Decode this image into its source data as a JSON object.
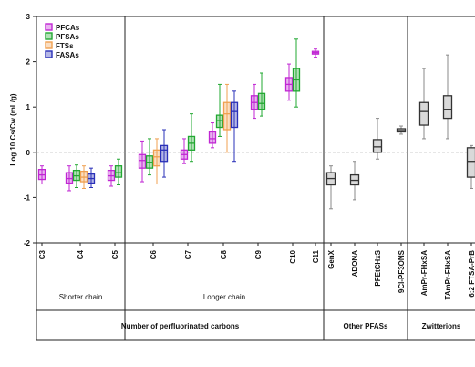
{
  "chart_data": {
    "type": "box",
    "ylabel": "Log 10 Cs/Cw (mL/g)",
    "ylim": [
      -2,
      3
    ],
    "yticks": [
      "-2",
      "-1",
      "0",
      "1",
      "2",
      "3"
    ],
    "reference_line": 0,
    "legend": {
      "placement": "top-left",
      "entries": [
        {
          "name": "PFCAs",
          "color": "#c026d3"
        },
        {
          "name": "PFSAs",
          "color": "#22a832"
        },
        {
          "name": "FTSs",
          "color": "#f0a050"
        },
        {
          "name": "FASAs",
          "color": "#2a30b8"
        }
      ]
    },
    "categories": [
      "C3",
      "C4",
      "C5",
      "C6",
      "C7",
      "C8",
      "C9",
      "C10",
      "C11",
      "GenX",
      "ADONA",
      "PFEtCHxS",
      "9Cl-PF3ONS",
      "AmPr-FHxSA",
      "TAmPr-FHxSA",
      "6:2 FTSA-PrB"
    ],
    "boxes": [
      {
        "category": "C3",
        "group": "PFCAs",
        "color": "#c026d3",
        "min": -0.7,
        "q1": -0.6,
        "median": -0.5,
        "q3": -0.38,
        "max": -0.3
      },
      {
        "category": "C4",
        "group": "PFCAs",
        "color": "#c026d3",
        "min": -0.85,
        "q1": -0.68,
        "median": -0.58,
        "q3": -0.45,
        "max": -0.3
      },
      {
        "category": "C4",
        "group": "PFSAs",
        "color": "#22a832",
        "min": -0.78,
        "q1": -0.62,
        "median": -0.52,
        "q3": -0.4,
        "max": -0.28
      },
      {
        "category": "C4",
        "group": "FTSs",
        "color": "#f0a050",
        "min": -0.8,
        "q1": -0.65,
        "median": -0.55,
        "q3": -0.42,
        "max": -0.3
      },
      {
        "category": "C4",
        "group": "FASAs",
        "color": "#2a30b8",
        "min": -0.78,
        "q1": -0.68,
        "median": -0.58,
        "q3": -0.48,
        "max": -0.35
      },
      {
        "category": "C5",
        "group": "PFCAs",
        "color": "#c026d3",
        "min": -0.75,
        "q1": -0.62,
        "median": -0.52,
        "q3": -0.4,
        "max": -0.3
      },
      {
        "category": "C5",
        "group": "PFSAs",
        "color": "#22a832",
        "min": -0.72,
        "q1": -0.55,
        "median": -0.45,
        "q3": -0.3,
        "max": -0.15
      },
      {
        "category": "C6",
        "group": "PFCAs",
        "color": "#c026d3",
        "min": -0.65,
        "q1": -0.35,
        "median": -0.18,
        "q3": -0.05,
        "max": 0.25
      },
      {
        "category": "C6",
        "group": "PFSAs",
        "color": "#22a832",
        "min": -0.5,
        "q1": -0.35,
        "median": -0.22,
        "q3": -0.08,
        "max": 0.3
      },
      {
        "category": "C6",
        "group": "FTSs",
        "color": "#f0a050",
        "min": -0.7,
        "q1": -0.3,
        "median": -0.1,
        "q3": 0.05,
        "max": 0.3
      },
      {
        "category": "C6",
        "group": "FASAs",
        "color": "#2a30b8",
        "min": -0.55,
        "q1": -0.2,
        "median": 0.05,
        "q3": 0.15,
        "max": 0.5
      },
      {
        "category": "C7",
        "group": "PFCAs",
        "color": "#c026d3",
        "min": -0.25,
        "q1": -0.15,
        "median": -0.05,
        "q3": 0.05,
        "max": 0.3
      },
      {
        "category": "C7",
        "group": "PFSAs",
        "color": "#22a832",
        "min": -0.2,
        "q1": 0.05,
        "median": 0.2,
        "q3": 0.35,
        "max": 0.85
      },
      {
        "category": "C8",
        "group": "PFCAs",
        "color": "#c026d3",
        "min": 0.1,
        "q1": 0.2,
        "median": 0.3,
        "q3": 0.45,
        "max": 0.65
      },
      {
        "category": "C8",
        "group": "PFSAs",
        "color": "#22a832",
        "min": 0.35,
        "q1": 0.55,
        "median": 0.7,
        "q3": 0.82,
        "max": 1.5
      },
      {
        "category": "C8",
        "group": "FTSs",
        "color": "#f0a050",
        "min": 0.0,
        "q1": 0.5,
        "median": 0.85,
        "q3": 1.1,
        "max": 1.5
      },
      {
        "category": "C8",
        "group": "FASAs",
        "color": "#2a30b8",
        "min": -0.2,
        "q1": 0.55,
        "median": 0.9,
        "q3": 1.1,
        "max": 1.35
      },
      {
        "category": "C9",
        "group": "PFCAs",
        "color": "#c026d3",
        "min": 0.75,
        "q1": 0.95,
        "median": 1.1,
        "q3": 1.25,
        "max": 1.5
      },
      {
        "category": "C9",
        "group": "PFSAs",
        "color": "#22a832",
        "min": 0.8,
        "q1": 0.95,
        "median": 1.08,
        "q3": 1.3,
        "max": 1.75
      },
      {
        "category": "C10",
        "group": "PFCAs",
        "color": "#c026d3",
        "min": 1.15,
        "q1": 1.35,
        "median": 1.5,
        "q3": 1.65,
        "max": 1.95
      },
      {
        "category": "C10",
        "group": "PFSAs",
        "color": "#22a832",
        "min": 1.0,
        "q1": 1.35,
        "median": 1.6,
        "q3": 1.85,
        "max": 2.5
      },
      {
        "category": "C11",
        "group": "PFCAs",
        "color": "#c026d3",
        "min": 2.1,
        "q1": 2.17,
        "median": 2.2,
        "q3": 2.23,
        "max": 2.28
      },
      {
        "category": "GenX",
        "group": "Other PFASs",
        "color": "#8a8a8a",
        "min": -1.25,
        "q1": -0.72,
        "median": -0.58,
        "q3": -0.45,
        "max": -0.3
      },
      {
        "category": "ADONA",
        "group": "Other PFASs",
        "color": "#8a8a8a",
        "min": -1.05,
        "q1": -0.72,
        "median": -0.62,
        "q3": -0.5,
        "max": -0.2
      },
      {
        "category": "PFEtCHxS",
        "group": "Other PFASs",
        "color": "#8a8a8a",
        "min": -0.15,
        "q1": 0.0,
        "median": 0.12,
        "q3": 0.28,
        "max": 0.75
      },
      {
        "category": "9Cl-PF3ONS",
        "group": "Other PFASs",
        "color": "#8a8a8a",
        "min": 0.4,
        "q1": 0.45,
        "median": 0.48,
        "q3": 0.52,
        "max": 0.58
      },
      {
        "category": "AmPr-FHxSA",
        "group": "Zwitterions",
        "color": "#8a8a8a",
        "min": 0.3,
        "q1": 0.6,
        "median": 0.9,
        "q3": 1.1,
        "max": 1.85
      },
      {
        "category": "TAmPr-FHxSA",
        "group": "Zwitterions",
        "color": "#8a8a8a",
        "min": 0.3,
        "q1": 0.75,
        "median": 0.95,
        "q3": 1.25,
        "max": 2.15
      },
      {
        "category": "6:2 FTSA-PrB",
        "group": "Zwitterions",
        "color": "#8a8a8a",
        "min": -0.8,
        "q1": -0.55,
        "median": -0.2,
        "q3": 0.1,
        "max": 0.15
      }
    ],
    "subgroup_labels": [
      "Shorter chain",
      "Longer chain"
    ],
    "group_labels": [
      "Number of perfluorinated carbons",
      "Other PFASs",
      "Zwitterions"
    ]
  }
}
